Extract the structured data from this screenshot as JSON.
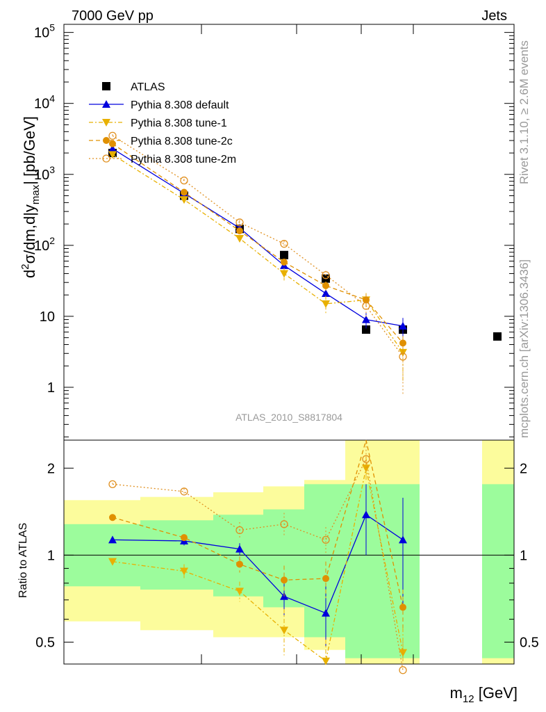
{
  "header": {
    "left": "7000 GeV pp",
    "right": "Jets"
  },
  "side_text": {
    "upper": "Rivet 3.1.10, ≥ 2.6M events",
    "lower": "mcplots.cern.ch [arXiv:1306.3436]"
  },
  "analysis_label": "ATLAS_2010_S8817804",
  "colors": {
    "data": "#000000",
    "default": "#0000dd",
    "tune1": "#e8b000",
    "tune2c": "#e09000",
    "tune2m": "#e09020",
    "band_green": "#9cfc9c",
    "band_yellow": "#fcfc9c"
  },
  "chart_data": [
    {
      "type": "scatter",
      "ylabel_parts": {
        "d": "d",
        "sup": "2",
        "mid": "σ/dm,d|y",
        "sub": "max",
        "tail": "| [pb/GeV]"
      },
      "yscale": "log",
      "ylim": [
        0.18,
        130000
      ],
      "yticks": [
        {
          "value": 1,
          "label": "1"
        },
        {
          "value": 10,
          "label": "10"
        },
        {
          "value": 100,
          "label": "10",
          "exp": "2"
        },
        {
          "value": 1000,
          "label": "10",
          "exp": "3"
        },
        {
          "value": 10000,
          "label": "10",
          "exp": "4"
        },
        {
          "value": 100000,
          "label": "10",
          "exp": "5"
        }
      ],
      "x": [
        1,
        2,
        3,
        4,
        5,
        6,
        7,
        8
      ],
      "series": [
        {
          "name": "ATLAS",
          "marker": "square",
          "values": [
            2000,
            500,
            170,
            73,
            34,
            6.5,
            6.5,
            5.2
          ]
        },
        {
          "name": "Pythia 8.308 default",
          "marker": "triangle-up",
          "values": [
            2300,
            540,
            175,
            52,
            21,
            9.0,
            7.3,
            null
          ],
          "err": [
            0.05,
            0.05,
            0.05,
            0.1,
            0.15,
            0.25,
            0.3,
            null
          ]
        },
        {
          "name": "Pythia 8.308 tune-1",
          "marker": "triangle-down",
          "values": [
            1900,
            440,
            125,
            40,
            15,
            17,
            3.1,
            null
          ],
          "err": [
            0.05,
            0.07,
            0.1,
            0.2,
            0.3,
            0.25,
            0.6,
            null
          ]
        },
        {
          "name": "Pythia 8.308 tune-2c",
          "marker": "circle",
          "values": [
            2700,
            560,
            160,
            58,
            27,
            17,
            4.2,
            null
          ],
          "err": [
            0.05,
            0.05,
            0.08,
            0.1,
            0.15,
            0.2,
            0.25,
            null
          ]
        },
        {
          "name": "Pythia 8.308 tune-2m",
          "marker": "circle-open",
          "values": [
            3500,
            820,
            210,
            105,
            38,
            14,
            2.7,
            null
          ],
          "err": [
            0.05,
            0.05,
            0.08,
            0.1,
            0.15,
            0.3,
            0.7,
            null
          ]
        }
      ]
    },
    {
      "type": "scatter",
      "ylabel": "Ratio to ATLAS",
      "yscale": "log",
      "ylim": [
        0.42,
        2.5
      ],
      "yticks": [
        {
          "value": 0.5,
          "label": "0.5"
        },
        {
          "value": 1,
          "label": "1"
        },
        {
          "value": 2,
          "label": "2"
        }
      ],
      "xlabel_parts": {
        "base": "m",
        "sub": "12",
        "tail": " [GeV]"
      },
      "bands": [
        {
          "x": 1,
          "green": [
            0.78,
            1.28
          ],
          "yellow": [
            0.59,
            1.55
          ]
        },
        {
          "x": 2,
          "green": [
            0.76,
            1.32
          ],
          "yellow": [
            0.55,
            1.59
          ]
        },
        {
          "x": 3,
          "green": [
            0.72,
            1.38
          ],
          "yellow": [
            0.52,
            1.65
          ]
        },
        {
          "x": 4,
          "green": [
            0.66,
            1.44
          ],
          "yellow": [
            0.52,
            1.73
          ]
        },
        {
          "x": 5,
          "green": [
            0.52,
            1.76
          ],
          "yellow": [
            0.47,
            1.82
          ]
        },
        {
          "x": 6,
          "green": [
            0.44,
            1.76
          ],
          "yellow": [
            0.42,
            2.5
          ]
        },
        {
          "x": 8,
          "green": [
            0.44,
            1.76
          ],
          "yellow": [
            0.42,
            2.5
          ]
        }
      ],
      "series": [
        {
          "name": "Pythia 8.308 default",
          "values": [
            1.13,
            1.12,
            1.05,
            0.72,
            0.63,
            1.38,
            1.13,
            null
          ],
          "err": [
            0.02,
            0.04,
            0.05,
            0.1,
            0.15,
            0.38,
            0.45,
            null
          ]
        },
        {
          "name": "Pythia 8.308 tune-1",
          "values": [
            0.95,
            0.88,
            0.75,
            0.55,
            0.43,
            2.0,
            0.46,
            null
          ],
          "err": [
            0.02,
            0.05,
            0.06,
            0.1,
            0.08,
            0.2,
            0.1,
            null
          ]
        },
        {
          "name": "Pythia 8.308 tune-2c",
          "values": [
            1.35,
            1.15,
            0.93,
            0.82,
            0.83,
            2.6,
            0.66,
            null
          ],
          "err": [
            0.02,
            0.03,
            0.06,
            0.1,
            0.12,
            0.2,
            0.1,
            null
          ]
        },
        {
          "name": "Pythia 8.308 tune-2m",
          "values": [
            1.76,
            1.66,
            1.22,
            1.28,
            1.13,
            2.15,
            0.4,
            null
          ],
          "err": [
            0.02,
            0.04,
            0.08,
            0.12,
            0.12,
            0.3,
            0.1,
            null
          ]
        }
      ]
    }
  ]
}
